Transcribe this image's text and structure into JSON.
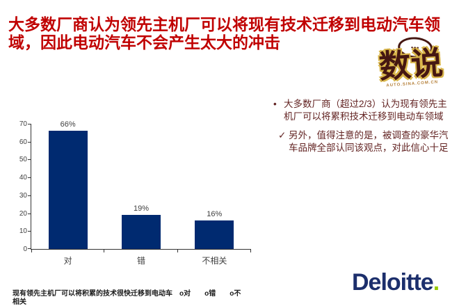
{
  "slide": {
    "title": "大多数厂商认为领先主机厂可以将现有技术迁移到电动汽车领域，因此电动汽车不会产生太大的冲击",
    "title_color": "#c00000",
    "background_color": "#ffffff"
  },
  "shushuo_logo": {
    "text": "数说",
    "subtext": "AUTO.SINA.COM.CN",
    "bubble_dots": "•••",
    "color": "#451712",
    "outline_color": "#d9b64a"
  },
  "bullets": [
    {
      "marker": "•",
      "text": "大多数厂商（超过2/3）认为现有领先主机厂可以将累积技术迁移到电动车领域"
    },
    {
      "marker": "✓",
      "text": "另外，值得注意的是，被调查的豪华汽车品牌全部认同该观点，对此信心十足"
    }
  ],
  "bullet_color": "#632423",
  "chart_data": {
    "type": "bar",
    "categories": [
      "对",
      "错",
      "不相关"
    ],
    "values": [
      66,
      19,
      16
    ],
    "value_labels": [
      "66%",
      "19%",
      "16%"
    ],
    "ylim": [
      0,
      70
    ],
    "ytick_step": 10,
    "grid": false,
    "legend": "none",
    "bar_color": "#002a70",
    "axis_text_color": "#404040",
    "caption_line1": "现有领先主机厂可以将积累的技术很快迁移到电动车　o对　　o错　　o不",
    "caption_line2": "相关"
  },
  "deloitte_logo": {
    "text": "Deloitte",
    "dot": ".",
    "text_color": "#1c2f6c",
    "dot_color": "#97ca00"
  }
}
